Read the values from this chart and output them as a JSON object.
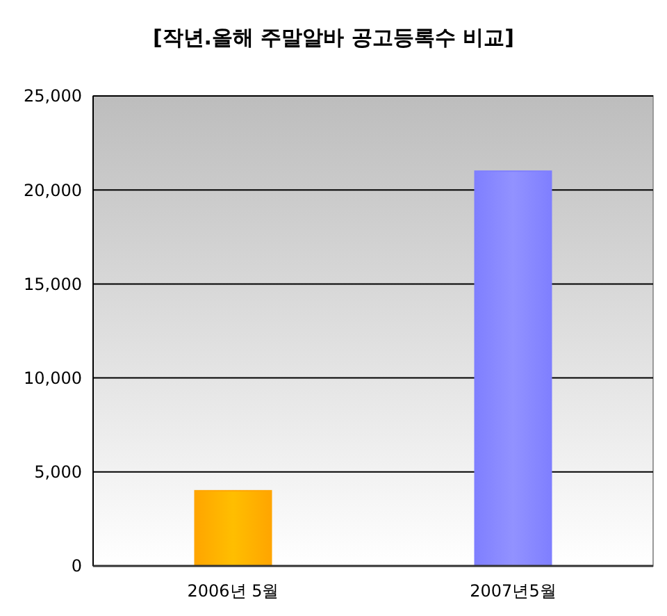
{
  "chart_data": {
    "type": "bar",
    "title": "[작년.올해 주말알바 공고등록수 비교]",
    "categories": [
      "2006년 5월",
      "2007년5월"
    ],
    "values": [
      4000,
      21000
    ],
    "colors": [
      "#ffa500",
      "#7f7fff"
    ],
    "ylim": [
      0,
      25000
    ],
    "yticks": [
      {
        "value": 0,
        "label": "0"
      },
      {
        "value": 5000,
        "label": "5,000"
      },
      {
        "value": 10000,
        "label": "10,000"
      },
      {
        "value": 15000,
        "label": "15,000"
      },
      {
        "value": 20000,
        "label": "20,000"
      },
      {
        "value": 25000,
        "label": "25,000"
      }
    ],
    "grid": "y"
  }
}
